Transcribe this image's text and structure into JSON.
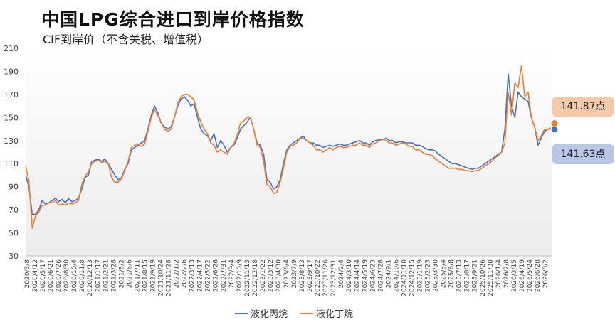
{
  "title": "中国LPG综合进口到岸价格指数",
  "subtitle": "CIF到岸价（不含关税、增值税）",
  "colors": {
    "propane": "#4472C4",
    "butane": "#ED7D31"
  },
  "callouts": {
    "butane": "141.87点",
    "propane": "141.63点"
  },
  "chart_data": {
    "type": "line",
    "title": "中国LPG综合进口到岸价格指数",
    "subtitle": "CIF到岸价（不含关税、增值税）",
    "xlabel": "",
    "ylabel": "",
    "ylim": [
      30,
      210
    ],
    "yticks": [
      30,
      50,
      70,
      90,
      110,
      130,
      150,
      170,
      190,
      210
    ],
    "grid": false,
    "legend": "bottom",
    "x_tick_labels": [
      "2020/3/8",
      "2020/4/12",
      "2020/5/17",
      "2020/6/21",
      "2020/7/26",
      "2020/8/30",
      "2020/10/4",
      "2020/11/8",
      "2020/12/13",
      "2021/1/17",
      "2021/2/21",
      "2021/3/28",
      "2021/5/2",
      "2021/6/6",
      "2021/7/11",
      "2021/8/15",
      "2021/9/19",
      "2021/10/24",
      "2021/11/28",
      "2022/1/2",
      "2022/2/6",
      "2022/3/13",
      "2022/4/17",
      "2022/5/22",
      "2022/6/26",
      "2022/7/31",
      "2022/9/4",
      "2022/10/9",
      "2022/11/13",
      "2022/12/18",
      "2023/1/22",
      "2023/3/12",
      "2023/4/30",
      "2023/6/4",
      "2023/7/9",
      "2023/8/13",
      "2023/9/17",
      "2023/10/22",
      "2023/11/26",
      "2023/12/31",
      "2024/2/4",
      "2024/3/10",
      "2024/4/14",
      "2024/5/19",
      "2024/6/23",
      "2024/7/28",
      "2024/9/1",
      "2024/10/6",
      "2024/11/10",
      "2024/12/15",
      "2025/1/19",
      "2025/2/23",
      "2025/3/30",
      "2025/5/4",
      "2025/6/8",
      "2025/7/13",
      "2025/8/17",
      "2025/9/21",
      "2025/10/26",
      "2025/11/30",
      "2026/1/4",
      "2026/2/8",
      "2026/3/15",
      "2026/4/19",
      "2026/5/24",
      "2026/6/28",
      "2026/8/2"
    ],
    "series": [
      {
        "name": "液化丙烷",
        "color": "#4472C4",
        "values": [
          100,
          90,
          66,
          66,
          70,
          78,
          75,
          76,
          78,
          80,
          77,
          79,
          76,
          80,
          77,
          78,
          80,
          88,
          98,
          100,
          112,
          113,
          114,
          112,
          114,
          110,
          105,
          100,
          96,
          98,
          105,
          110,
          122,
          124,
          126,
          128,
          130,
          140,
          152,
          160,
          154,
          145,
          142,
          140,
          142,
          150,
          160,
          166,
          168,
          165,
          160,
          162,
          150,
          140,
          136,
          134,
          130,
          136,
          124,
          130,
          126,
          120,
          124,
          126,
          132,
          140,
          143,
          146,
          150,
          140,
          128,
          126,
          118,
          96,
          94,
          88,
          90,
          96,
          110,
          122,
          126,
          128,
          130,
          132,
          134,
          130,
          128,
          128,
          126,
          126,
          124,
          125,
          126,
          125,
          126,
          127,
          126,
          126,
          127,
          128,
          129,
          130,
          128,
          128,
          126,
          129,
          130,
          131,
          131,
          132,
          130,
          130,
          128,
          129,
          129,
          128,
          128,
          128,
          126,
          126,
          125,
          123,
          122,
          122,
          121,
          118,
          116,
          114,
          112,
          110,
          110,
          109,
          108,
          107,
          106,
          105,
          106,
          106,
          108,
          110,
          112,
          114,
          116,
          118,
          120,
          140,
          188,
          160,
          150,
          172,
          168,
          166,
          164,
          150,
          142,
          126,
          132,
          138,
          140,
          140,
          141.63
        ],
        "end_value": 141.63
      },
      {
        "name": "液化丁烷",
        "color": "#ED7D31",
        "values": [
          108,
          95,
          54,
          65,
          68,
          74,
          74,
          76,
          76,
          78,
          74,
          75,
          74,
          76,
          75,
          76,
          78,
          92,
          99,
          103,
          110,
          112,
          113,
          111,
          112,
          110,
          98,
          94,
          94,
          97,
          104,
          112,
          124,
          126,
          127,
          125,
          127,
          138,
          150,
          157,
          152,
          146,
          140,
          138,
          140,
          150,
          162,
          168,
          170,
          170,
          168,
          165,
          154,
          146,
          140,
          136,
          128,
          126,
          120,
          122,
          120,
          118,
          124,
          127,
          135,
          145,
          147,
          150,
          150,
          140,
          126,
          124,
          112,
          92,
          90,
          84,
          85,
          94,
          106,
          120,
          125,
          126,
          128,
          132,
          132,
          130,
          128,
          126,
          122,
          122,
          120,
          122,
          124,
          122,
          124,
          125,
          124,
          124,
          125,
          126,
          126,
          128,
          126,
          126,
          124,
          127,
          128,
          130,
          131,
          130,
          128,
          128,
          126,
          127,
          128,
          127,
          125,
          125,
          122,
          122,
          120,
          118,
          118,
          117,
          114,
          112,
          110,
          108,
          106,
          106,
          106,
          105,
          105,
          104,
          104,
          103,
          104,
          104,
          106,
          108,
          110,
          112,
          115,
          117,
          120,
          128,
          172,
          152,
          180,
          176,
          195,
          168,
          172,
          150,
          142,
          130,
          134,
          140,
          140,
          141,
          141.87
        ],
        "end_value": 141.87
      }
    ]
  }
}
